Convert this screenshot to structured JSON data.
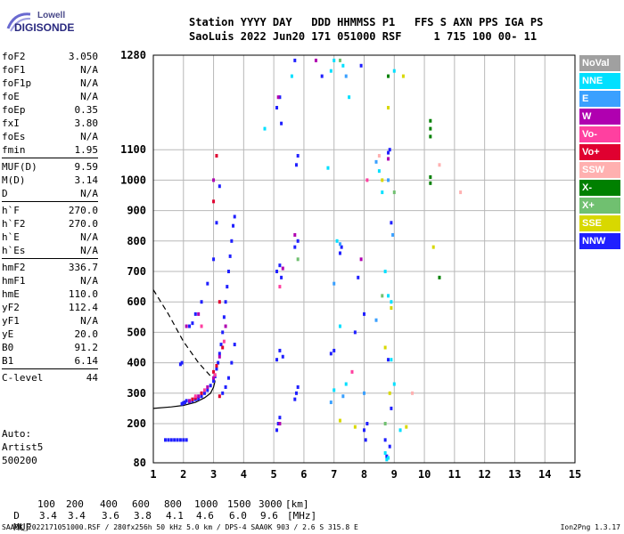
{
  "logo": {
    "line1": "Lowell",
    "line2": "DIGISONDE"
  },
  "header": {
    "line1": "Station YYYY DAY   DDD HHMMSS P1   FFS S AXN PPS IGA PS",
    "line2": "SaoLuis 2022 Jun20 171 051000 RSF     1 715 100 00- 11"
  },
  "params": [
    {
      "name": "foF2",
      "value": "3.050"
    },
    {
      "name": "foF1",
      "value": "N/A"
    },
    {
      "name": "foF1p",
      "value": "N/A"
    },
    {
      "name": "foE",
      "value": "N/A"
    },
    {
      "name": "foEp",
      "value": "0.35"
    },
    {
      "name": "fxI",
      "value": "3.80"
    },
    {
      "name": "foEs",
      "value": "N/A"
    },
    {
      "name": "fmin",
      "value": "1.95"
    },
    {
      "sep": true
    },
    {
      "name": "MUF(D)",
      "value": "9.59"
    },
    {
      "name": "M(D)",
      "value": "3.14"
    },
    {
      "name": "D",
      "value": "N/A"
    },
    {
      "sep": true
    },
    {
      "name": "h`F",
      "value": "270.0"
    },
    {
      "name": "h`F2",
      "value": "270.0"
    },
    {
      "name": "h`E",
      "value": "N/A"
    },
    {
      "name": "h`Es",
      "value": "N/A"
    },
    {
      "sep": true
    },
    {
      "name": "hmF2",
      "value": "336.7"
    },
    {
      "name": "hmF1",
      "value": "N/A"
    },
    {
      "name": "hmE",
      "value": "110.0"
    },
    {
      "name": "yF2",
      "value": "112.4"
    },
    {
      "name": "yF1",
      "value": "N/A"
    },
    {
      "name": "yE",
      "value": "20.0"
    },
    {
      "name": "B0",
      "value": "91.2"
    },
    {
      "name": "B1",
      "value": "6.14"
    },
    {
      "sep": true
    },
    {
      "name": "C-level",
      "value": "44"
    }
  ],
  "auto": {
    "line1": "Auto:",
    "line2": "Artist5",
    "line3": "500200"
  },
  "legend": [
    {
      "label": "NoVal",
      "color": "#a0a0a0"
    },
    {
      "label": "NNE",
      "color": "#00e0ff"
    },
    {
      "label": "E",
      "color": "#3aa0ff"
    },
    {
      "label": "W",
      "color": "#b000b0"
    },
    {
      "label": "Vo-",
      "color": "#ff40a0"
    },
    {
      "label": "Vo+",
      "color": "#e00030"
    },
    {
      "label": "SSW",
      "color": "#ffb0b0"
    },
    {
      "label": "X-",
      "color": "#008000"
    },
    {
      "label": "X+",
      "color": "#70c070"
    },
    {
      "label": "SSE",
      "color": "#d8d800"
    },
    {
      "label": "NNW",
      "color": "#2020ff"
    }
  ],
  "bottom": {
    "d_label": "D",
    "d_values": [
      "100",
      "200",
      "400",
      "600",
      "800",
      "1000",
      "1500",
      "3000",
      "[km]"
    ],
    "muf_label": "MUF",
    "muf_values": [
      "3.4",
      "3.4",
      "3.6",
      "3.8",
      "4.1",
      "4.6",
      "6.0",
      "9.6",
      "[MHz]"
    ]
  },
  "footer": {
    "left": "SAA0K_2022171051000.RSF / 280fx256h 50 kHz 5.0 km / DPS-4 SAA0K 903 / 2.6 S 315.8 E",
    "right": "Ion2Png 1.3.17"
  },
  "chart_data": {
    "type": "scatter",
    "xlim": [
      1,
      15
    ],
    "ylim": [
      80,
      1280
    ],
    "x_ticks": [
      "1",
      "2",
      "3",
      "4",
      "5",
      "6",
      "7",
      "8",
      "9",
      "10",
      "11",
      "12",
      "13",
      "14",
      "15"
    ],
    "y_ticks": [
      "80",
      "200",
      "300",
      "400",
      "500",
      "600",
      "700",
      "800",
      "900",
      "1000",
      "1100",
      "1280"
    ],
    "grid": true,
    "series": [
      {
        "color": "#2020ff",
        "points": [
          [
            1.95,
            265
          ],
          [
            2.0,
            268
          ],
          [
            2.05,
            270
          ],
          [
            2.1,
            275
          ],
          [
            2.2,
            272
          ],
          [
            2.3,
            275
          ],
          [
            2.4,
            280
          ],
          [
            2.5,
            282
          ],
          [
            2.6,
            290
          ],
          [
            2.7,
            300
          ],
          [
            2.8,
            310
          ],
          [
            2.9,
            325
          ],
          [
            3.0,
            340
          ],
          [
            3.05,
            355
          ],
          [
            3.1,
            380
          ],
          [
            3.15,
            400
          ],
          [
            3.2,
            430
          ],
          [
            3.25,
            460
          ],
          [
            3.3,
            500
          ],
          [
            3.35,
            550
          ],
          [
            3.4,
            600
          ],
          [
            3.45,
            650
          ],
          [
            3.5,
            700
          ],
          [
            3.55,
            750
          ],
          [
            3.6,
            800
          ],
          [
            3.65,
            850
          ],
          [
            3.7,
            880
          ],
          [
            3.3,
            300
          ],
          [
            3.4,
            320
          ],
          [
            3.5,
            350
          ],
          [
            3.6,
            400
          ],
          [
            3.7,
            460
          ],
          [
            2.2,
            520
          ],
          [
            2.3,
            530
          ],
          [
            2.4,
            560
          ],
          [
            2.6,
            600
          ],
          [
            2.8,
            660
          ],
          [
            3.0,
            740
          ],
          [
            3.1,
            860
          ],
          [
            3.2,
            980
          ],
          [
            1.9,
            395
          ],
          [
            1.95,
            400
          ],
          [
            2.0,
            150
          ],
          [
            1.8,
            150
          ],
          [
            1.6,
            150
          ],
          [
            1.4,
            150
          ],
          [
            2.1,
            150
          ],
          [
            1.5,
            150
          ],
          [
            1.7,
            150
          ],
          [
            1.9,
            150
          ],
          [
            5.1,
            180
          ],
          [
            5.15,
            200
          ],
          [
            5.2,
            220
          ],
          [
            5.1,
            410
          ],
          [
            5.2,
            440
          ],
          [
            5.3,
            420
          ],
          [
            5.1,
            700
          ],
          [
            5.2,
            720
          ],
          [
            5.25,
            680
          ],
          [
            5.1,
            1180
          ],
          [
            5.2,
            1200
          ],
          [
            5.25,
            1150
          ],
          [
            5.7,
            280
          ],
          [
            5.75,
            300
          ],
          [
            5.8,
            320
          ],
          [
            5.7,
            780
          ],
          [
            5.8,
            800
          ],
          [
            5.75,
            1050
          ],
          [
            5.8,
            1080
          ],
          [
            5.7,
            1270
          ],
          [
            7.2,
            760
          ],
          [
            7.25,
            780
          ],
          [
            7.8,
            680
          ],
          [
            7.7,
            500
          ],
          [
            8.0,
            560
          ],
          [
            8.0,
            180
          ],
          [
            8.05,
            150
          ],
          [
            8.1,
            200
          ],
          [
            8.7,
            150
          ],
          [
            8.75,
            100
          ],
          [
            8.8,
            1090
          ],
          [
            8.85,
            1100
          ],
          [
            8.9,
            860
          ],
          [
            8.8,
            410
          ],
          [
            8.9,
            250
          ],
          [
            8.85,
            130
          ],
          [
            7.9,
            1260
          ],
          [
            6.9,
            430
          ],
          [
            7.0,
            440
          ],
          [
            6.6,
            1240
          ]
        ]
      },
      {
        "color": "#b000b0",
        "points": [
          [
            2.2,
            275
          ],
          [
            2.5,
            290
          ],
          [
            2.8,
            320
          ],
          [
            3.0,
            350
          ],
          [
            3.2,
            420
          ],
          [
            3.4,
            520
          ],
          [
            2.1,
            520
          ],
          [
            2.5,
            560
          ],
          [
            3.0,
            1000
          ],
          [
            5.2,
            200
          ],
          [
            5.15,
            1200
          ],
          [
            5.7,
            820
          ],
          [
            5.3,
            710
          ],
          [
            7.9,
            740
          ],
          [
            8.8,
            1070
          ],
          [
            6.4,
            1270
          ]
        ]
      },
      {
        "color": "#e00030",
        "points": [
          [
            2.3,
            280
          ],
          [
            2.6,
            300
          ],
          [
            3.0,
            370
          ],
          [
            3.1,
            390
          ],
          [
            3.3,
            450
          ],
          [
            3.2,
            290
          ],
          [
            2.4,
            285
          ],
          [
            3.2,
            600
          ],
          [
            3.0,
            930
          ],
          [
            3.1,
            1080
          ]
        ]
      },
      {
        "color": "#ff40a0",
        "points": [
          [
            2.4,
            290
          ],
          [
            2.7,
            310
          ],
          [
            3.05,
            360
          ],
          [
            3.35,
            470
          ],
          [
            2.6,
            520
          ],
          [
            5.2,
            650
          ],
          [
            7.6,
            370
          ],
          [
            8.1,
            1000
          ]
        ]
      },
      {
        "color": "#00e0ff",
        "points": [
          [
            4.7,
            1140
          ],
          [
            6.9,
            1250
          ],
          [
            7.0,
            1270
          ],
          [
            7.3,
            1260
          ],
          [
            7.5,
            1200
          ],
          [
            8.6,
            960
          ],
          [
            8.7,
            700
          ],
          [
            8.8,
            620
          ],
          [
            8.9,
            600
          ],
          [
            9.0,
            330
          ],
          [
            8.75,
            90
          ],
          [
            8.8,
            95
          ],
          [
            8.7,
            110
          ],
          [
            7.0,
            310
          ],
          [
            7.4,
            330
          ],
          [
            6.8,
            1040
          ],
          [
            7.2,
            520
          ],
          [
            5.6,
            1240
          ],
          [
            8.5,
            1030
          ],
          [
            9.0,
            1250
          ],
          [
            7.1,
            800
          ],
          [
            8.9,
            410
          ],
          [
            9.2,
            180
          ]
        ]
      },
      {
        "color": "#3aa0ff",
        "points": [
          [
            7.2,
            790
          ],
          [
            7.4,
            1240
          ],
          [
            8.4,
            1060
          ],
          [
            8.8,
            1000
          ],
          [
            7.0,
            660
          ],
          [
            6.9,
            270
          ],
          [
            7.3,
            290
          ],
          [
            8.0,
            300
          ],
          [
            8.4,
            540
          ],
          [
            8.95,
            820
          ]
        ]
      },
      {
        "color": "#d8d800",
        "points": [
          [
            8.8,
            1180
          ],
          [
            8.9,
            580
          ],
          [
            7.7,
            190
          ],
          [
            8.85,
            300
          ],
          [
            9.4,
            190
          ],
          [
            7.2,
            210
          ],
          [
            9.3,
            1240
          ],
          [
            8.7,
            450
          ],
          [
            10.3,
            780
          ],
          [
            8.6,
            1000
          ]
        ]
      },
      {
        "color": "#008000",
        "points": [
          [
            10.2,
            1155
          ],
          [
            10.2,
            1140
          ],
          [
            10.2,
            1125
          ],
          [
            10.2,
            1010
          ],
          [
            10.2,
            990
          ],
          [
            10.5,
            680
          ],
          [
            8.8,
            1240
          ]
        ]
      },
      {
        "color": "#70c070",
        "points": [
          [
            8.6,
            620
          ],
          [
            9.0,
            960
          ],
          [
            7.2,
            1270
          ],
          [
            8.7,
            200
          ],
          [
            5.8,
            740
          ]
        ]
      },
      {
        "color": "#ffb0b0",
        "points": [
          [
            11.2,
            960
          ],
          [
            10.5,
            1050
          ],
          [
            9.6,
            300
          ],
          [
            8.5,
            1080
          ]
        ]
      }
    ],
    "curves": [
      {
        "style": "solid",
        "x": [
          1.0,
          1.6,
          2.0,
          2.4,
          2.7,
          2.9,
          3.0,
          3.05
        ],
        "y": [
          250,
          255,
          260,
          270,
          285,
          300,
          320,
          340
        ]
      },
      {
        "style": "dashed",
        "x": [
          1.0,
          1.5,
          2.0,
          2.5,
          3.05
        ],
        "y": [
          640,
          560,
          470,
          400,
          340
        ]
      }
    ]
  }
}
